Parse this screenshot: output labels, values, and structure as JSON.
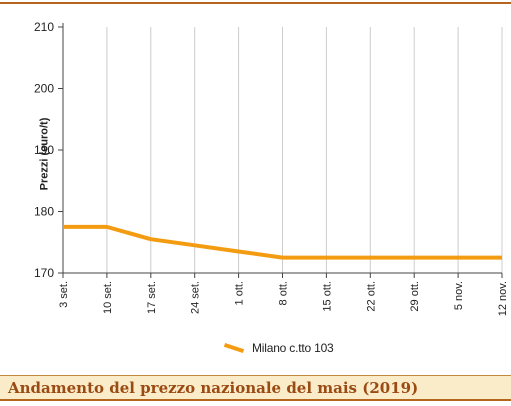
{
  "chart_data": {
    "type": "line",
    "categories": [
      "3 set.",
      "10 set.",
      "17 set.",
      "24 set.",
      "1 ott.",
      "8 ott.",
      "15 ott.",
      "22 ott.",
      "29 ott.",
      "5 nov.",
      "12 nov."
    ],
    "series": [
      {
        "name": "Milano  c.tto 103",
        "values": [
          177.5,
          177.5,
          175.5,
          174.5,
          173.5,
          172.5,
          172.5,
          172.5,
          172.5,
          172.5,
          172.5
        ]
      }
    ],
    "ylabel": "Prezzi (euro/t)",
    "xlabel": "",
    "ylim": [
      170,
      210
    ],
    "yticks": [
      170,
      180,
      190,
      200,
      210
    ],
    "grid": "vertical",
    "legend_position": "bottom-center",
    "line_color": "#f39c12"
  },
  "caption": {
    "text": "Andamento del prezzo nazionale del mais (2019)"
  }
}
